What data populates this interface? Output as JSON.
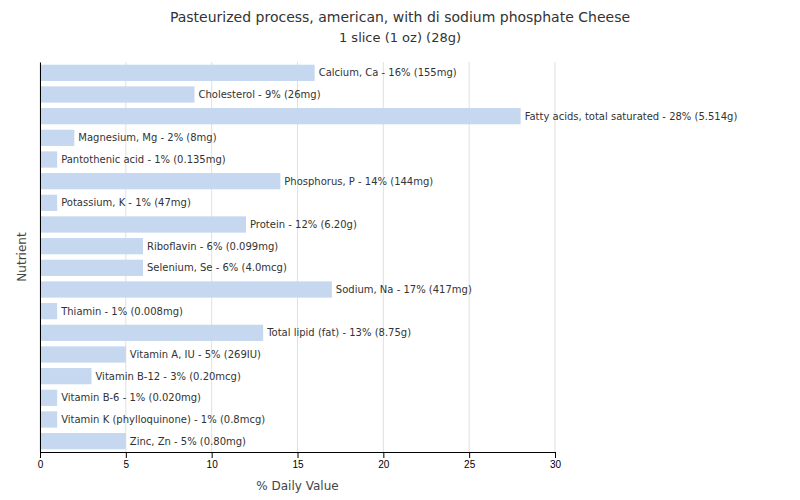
{
  "chart_data": {
    "type": "bar",
    "orientation": "horizontal",
    "title": "Pasteurized process, american, with di sodium phosphate Cheese",
    "subtitle": "1 slice (1 oz) (28g)",
    "x_label": "% Daily Value",
    "y_label": "Nutrient",
    "categories": [
      "Calcium, Ca - 16% (155mg)",
      "Cholesterol - 9% (26mg)",
      "Fatty acids, total saturated - 28% (5.514g)",
      "Magnesium, Mg - 2% (8mg)",
      "Pantothenic acid - 1% (0.135mg)",
      "Phosphorus, P - 14% (144mg)",
      "Potassium, K - 1% (47mg)",
      "Protein - 12% (6.20g)",
      "Riboflavin - 6% (0.099mg)",
      "Selenium, Se - 6% (4.0mcg)",
      "Sodium, Na - 17% (417mg)",
      "Thiamin - 1% (0.008mg)",
      "Total lipid (fat) - 13% (8.75g)",
      "Vitamin A, IU - 5% (269IU)",
      "Vitamin B-12 - 3% (0.20mcg)",
      "Vitamin B-6 - 1% (0.020mg)",
      "Vitamin K (phylloquinone) - 1% (0.8mcg)",
      "Zinc, Zn - 5% (0.80mg)"
    ],
    "values": [
      16,
      9,
      28,
      2,
      1,
      14,
      1,
      12,
      6,
      6,
      17,
      1,
      13,
      5,
      3,
      1,
      1,
      5
    ],
    "color": "#c5d8f0",
    "xlim": [
      0,
      30
    ],
    "xticks": [
      0,
      5,
      10,
      15,
      20,
      25,
      30
    ],
    "grid": true,
    "tick_labels": "x"
  }
}
